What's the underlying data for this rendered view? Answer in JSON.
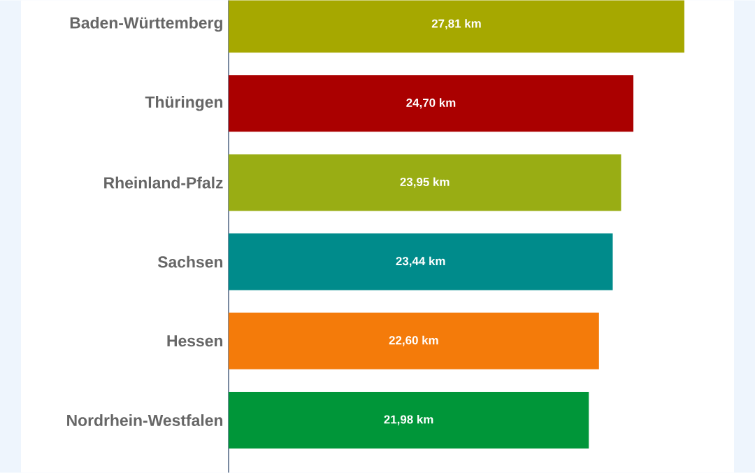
{
  "chart_data": {
    "type": "bar",
    "orientation": "horizontal",
    "categories": [
      "Baden-Württemberg",
      "Thüringen",
      "Rheinland-Pfalz",
      "Sachsen",
      "Hessen",
      "Nordrhein-Westfalen"
    ],
    "values": [
      27.81,
      24.7,
      23.95,
      23.44,
      22.6,
      21.98
    ],
    "colors": [
      "#a6a800",
      "#aa0000",
      "#99ad14",
      "#008b8b",
      "#f47b0a",
      "#009639"
    ],
    "value_labels": [
      "27,81 km",
      "24,70 km",
      "23,95 km",
      "23,44 km",
      "22,60 km",
      "21,98 km"
    ]
  }
}
